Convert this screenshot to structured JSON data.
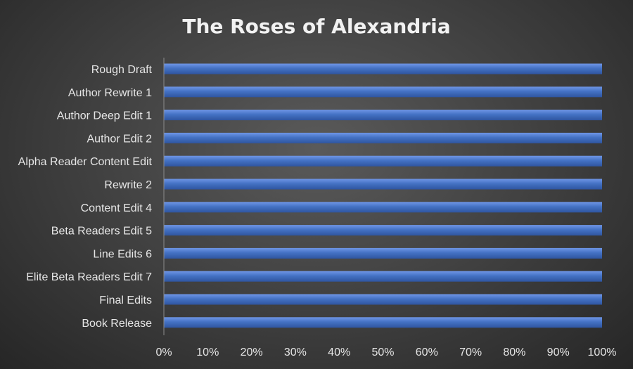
{
  "chart_data": {
    "type": "bar",
    "orientation": "horizontal",
    "title": "The Roses of Alexandria",
    "xlabel": "",
    "ylabel": "",
    "categories": [
      "Rough Draft",
      "Author Rewrite 1",
      "Author Deep Edit 1",
      "Author Edit 2",
      "Alpha Reader Content Edit",
      "Rewrite 2",
      "Content Edit 4",
      "Beta Readers Edit 5",
      "Line Edits 6",
      "Elite Beta Readers Edit 7",
      "Final Edits",
      "Book Release"
    ],
    "values": [
      100,
      100,
      100,
      100,
      100,
      100,
      100,
      100,
      100,
      100,
      100,
      100
    ],
    "xlim": [
      0,
      100
    ],
    "xticks": [
      "0%",
      "10%",
      "20%",
      "30%",
      "40%",
      "50%",
      "60%",
      "70%",
      "80%",
      "90%",
      "100%"
    ],
    "grid": false,
    "legend": "none",
    "bar_color": "#4472c4"
  }
}
